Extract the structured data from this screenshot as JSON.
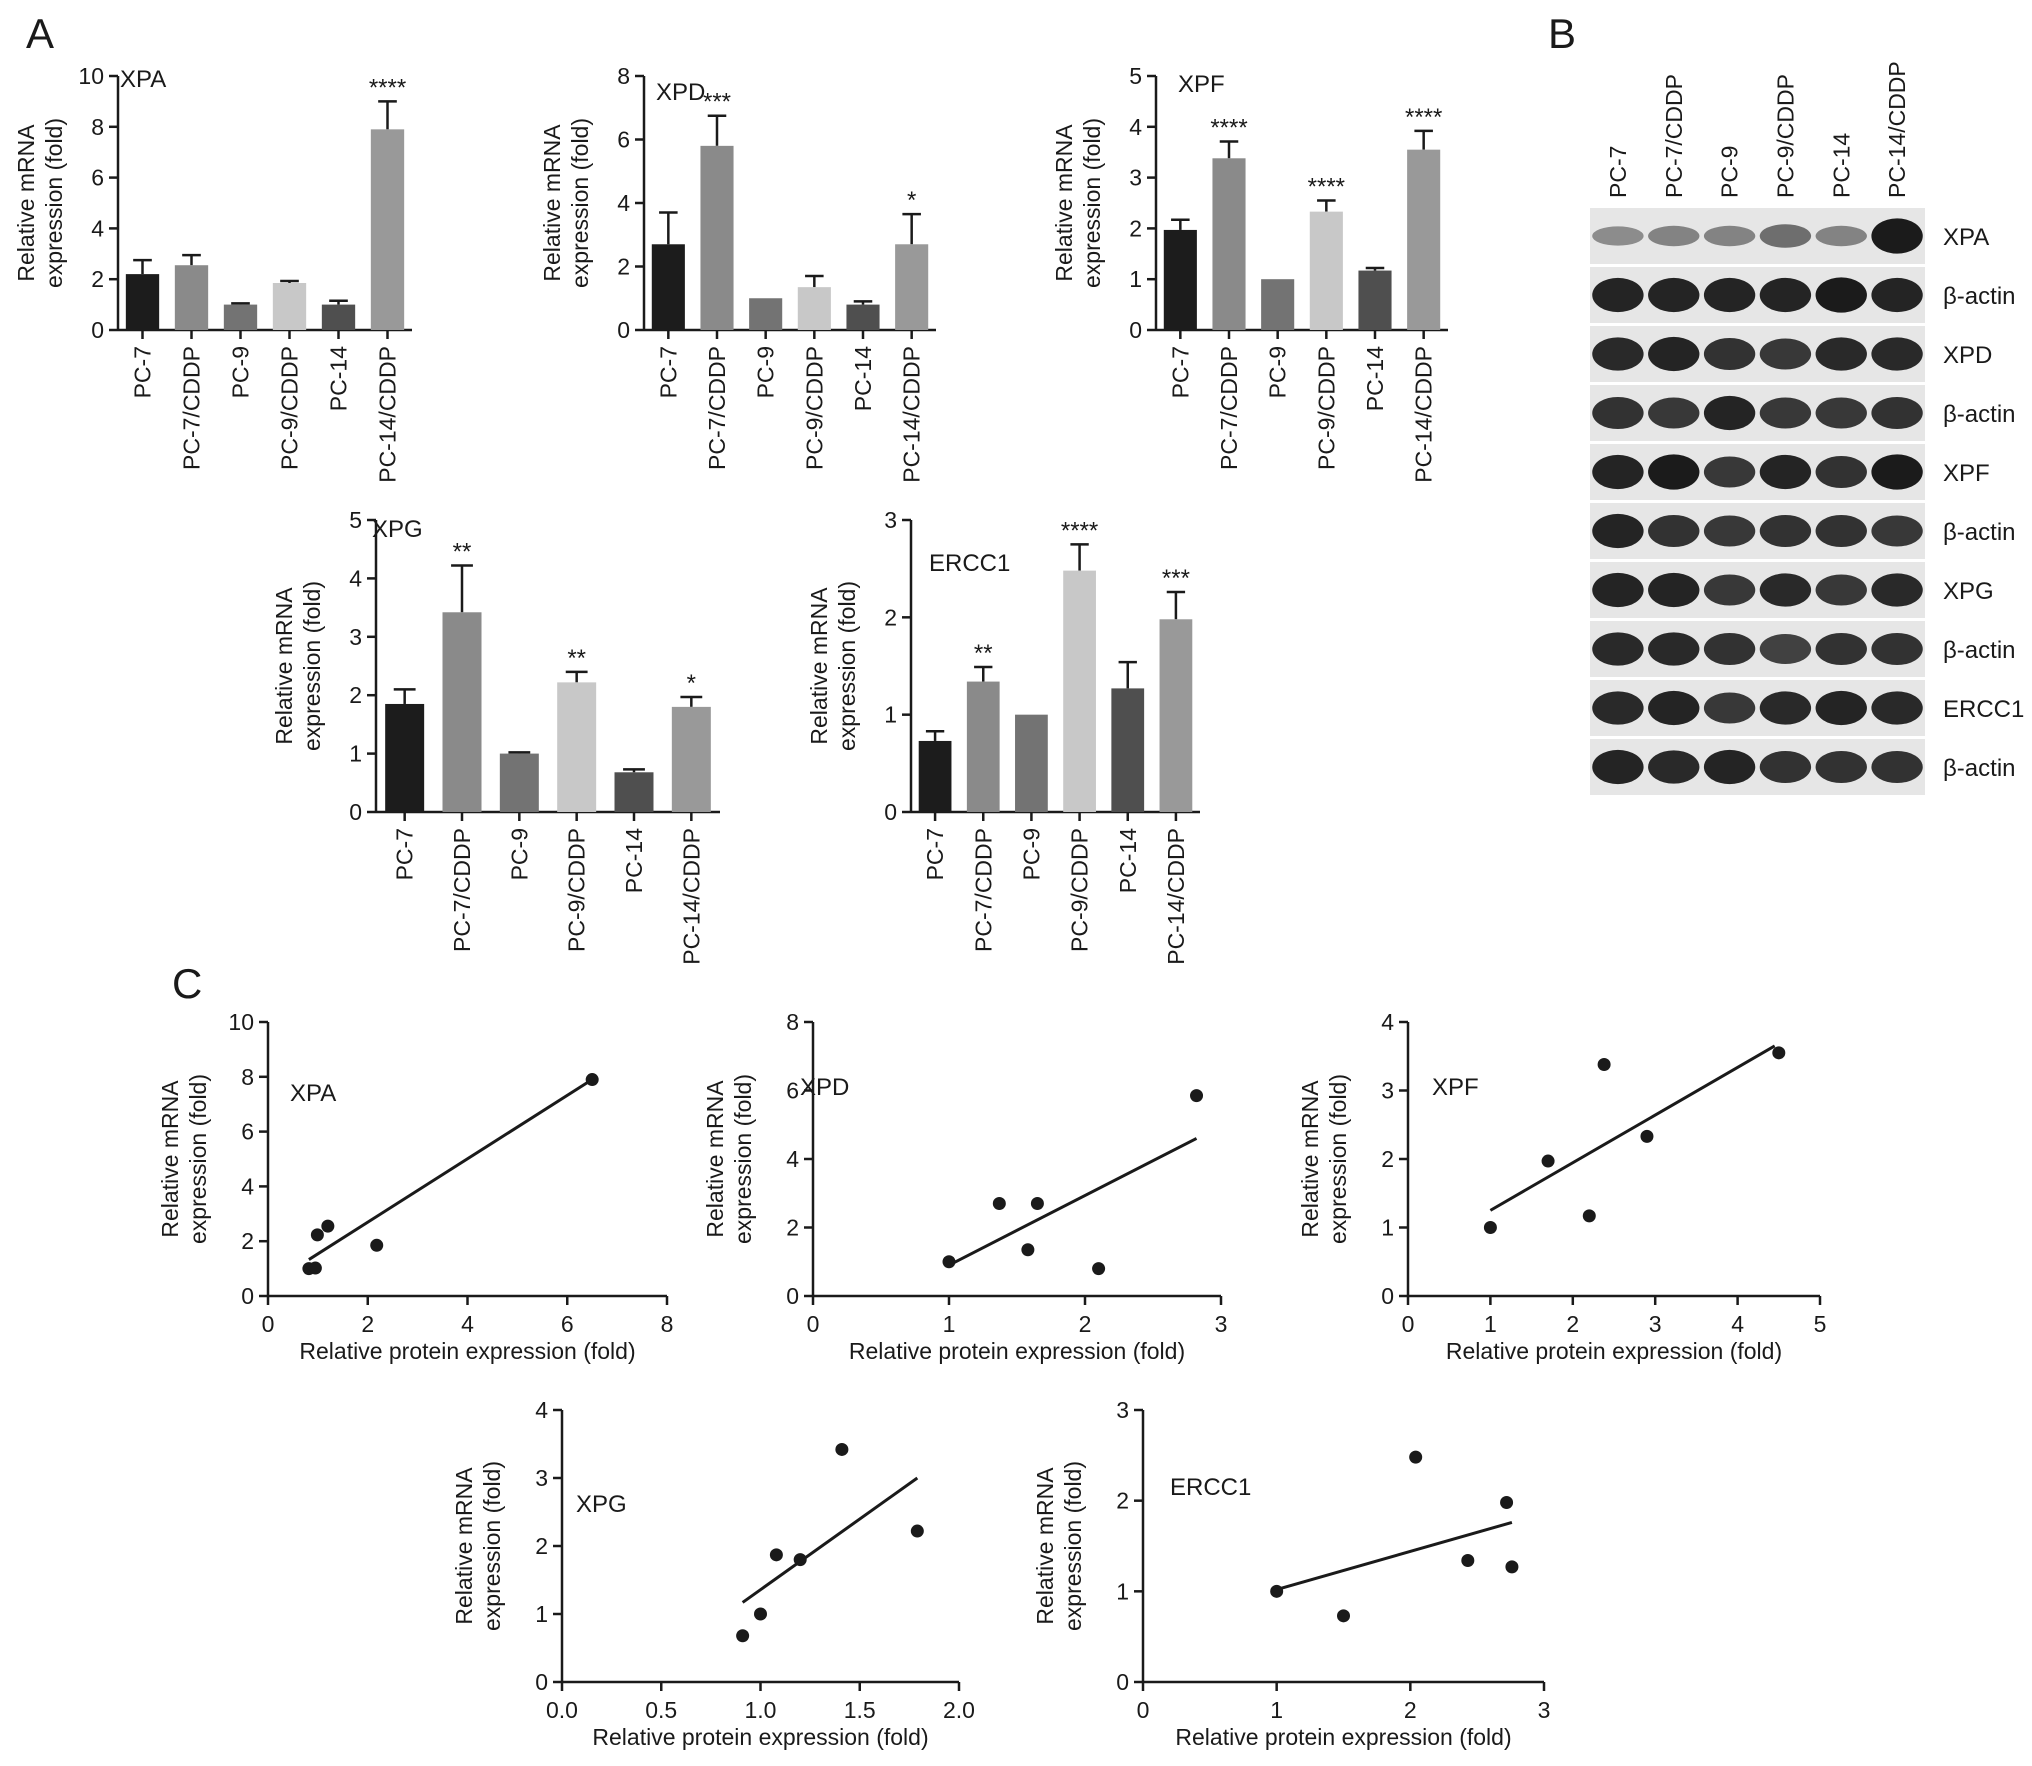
{
  "panel_labels": [
    "A",
    "B",
    "C"
  ],
  "colors": {
    "axis": "#1a1a1a",
    "bar_palette": [
      "#1c1c1c",
      "#8a8a8a",
      "#737373",
      "#c8c8c8",
      "#4f4f4f",
      "#999999"
    ],
    "blot_background": "#e6e6e6",
    "blot_band": "#141414"
  },
  "blot": {
    "lanes": [
      "PC-7",
      "PC-7/CDDP",
      "PC-9",
      "PC-9/CDDP",
      "PC-14",
      "PC-14/CDDP"
    ],
    "rows": [
      {
        "label": "XPA",
        "intensities": [
          0.25,
          0.3,
          0.3,
          0.45,
          0.3,
          1.0
        ]
      },
      {
        "label": "β-actin",
        "intensities": [
          0.95,
          0.95,
          0.95,
          0.95,
          1.0,
          0.95
        ]
      },
      {
        "label": "XPD",
        "intensities": [
          0.9,
          0.95,
          0.85,
          0.8,
          0.9,
          0.9
        ]
      },
      {
        "label": "β-actin",
        "intensities": [
          0.85,
          0.8,
          0.95,
          0.8,
          0.8,
          0.85
        ]
      },
      {
        "label": "XPF",
        "intensities": [
          0.95,
          1.0,
          0.8,
          0.95,
          0.85,
          1.0
        ]
      },
      {
        "label": "β-actin",
        "intensities": [
          0.95,
          0.85,
          0.8,
          0.85,
          0.85,
          0.8
        ]
      },
      {
        "label": "XPG",
        "intensities": [
          0.95,
          0.95,
          0.8,
          0.9,
          0.8,
          0.9
        ]
      },
      {
        "label": "β-actin",
        "intensities": [
          0.9,
          0.9,
          0.85,
          0.75,
          0.85,
          0.85
        ]
      },
      {
        "label": "ERCC1",
        "intensities": [
          0.9,
          0.95,
          0.8,
          0.9,
          0.95,
          0.9
        ]
      },
      {
        "label": "β-actin",
        "intensities": [
          0.95,
          0.9,
          0.95,
          0.85,
          0.85,
          0.85
        ]
      }
    ]
  },
  "chart_data": [
    {
      "type": "bar",
      "panel": "A",
      "title": "XPA",
      "categories": [
        "PC-7",
        "PC-7/CDDP",
        "PC-9",
        "PC-9/CDDP",
        "PC-14",
        "PC-14/CDDP"
      ],
      "values": [
        2.2,
        2.55,
        1.0,
        1.85,
        1.0,
        7.9
      ],
      "errors": [
        0.55,
        0.4,
        0.05,
        0.08,
        0.15,
        1.1
      ],
      "significance": [
        "",
        "",
        "",
        "",
        "",
        "****"
      ],
      "ylabel": "Relative mRNA expression (fold)",
      "ylim": [
        0,
        10
      ],
      "yticks": [
        0,
        2,
        4,
        6,
        8,
        10
      ],
      "ytick_labels": [
        "0",
        "2",
        "4",
        "6",
        "8",
        "10"
      ]
    },
    {
      "type": "bar",
      "panel": "A",
      "title": "XPD",
      "categories": [
        "PC-7",
        "PC-7/CDDP",
        "PC-9",
        "PC-9/CDDP",
        "PC-14",
        "PC-14/CDDP"
      ],
      "values": [
        2.7,
        5.8,
        1.0,
        1.35,
        0.8,
        2.7
      ],
      "errors": [
        1.0,
        0.95,
        0.0,
        0.35,
        0.1,
        0.95
      ],
      "significance": [
        "",
        "***",
        "",
        "",
        "",
        "*"
      ],
      "ylabel": "Relative mRNA expression (fold)",
      "ylim": [
        0,
        8
      ],
      "yticks": [
        0,
        2,
        4,
        6,
        8
      ],
      "ytick_labels": [
        "0",
        "2",
        "4",
        "6",
        "8"
      ]
    },
    {
      "type": "bar",
      "panel": "A",
      "title": "XPF",
      "categories": [
        "PC-7",
        "PC-7/CDDP",
        "PC-9",
        "PC-9/CDDP",
        "PC-14",
        "PC-14/CDDP"
      ],
      "values": [
        1.97,
        3.38,
        1.0,
        2.33,
        1.17,
        3.55
      ],
      "errors": [
        0.2,
        0.33,
        0.0,
        0.22,
        0.05,
        0.37
      ],
      "significance": [
        "",
        "****",
        "",
        "****",
        "",
        "****"
      ],
      "ylabel": "Relative mRNA expression (fold)",
      "ylim": [
        0,
        5
      ],
      "yticks": [
        0,
        1,
        2,
        3,
        4,
        5
      ],
      "ytick_labels": [
        "0",
        "1",
        "2",
        "3",
        "4",
        "5"
      ]
    },
    {
      "type": "bar",
      "panel": "A",
      "title": "XPG",
      "categories": [
        "PC-7",
        "PC-7/CDDP",
        "PC-9",
        "PC-9/CDDP",
        "PC-14",
        "PC-14/CDDP"
      ],
      "values": [
        1.85,
        3.42,
        1.0,
        2.22,
        0.68,
        1.8
      ],
      "errors": [
        0.25,
        0.8,
        0.02,
        0.18,
        0.05,
        0.17
      ],
      "significance": [
        "",
        "**",
        "",
        "**",
        "",
        "*"
      ],
      "ylabel": "Relative mRNA expression (fold)",
      "ylim": [
        0,
        5
      ],
      "yticks": [
        0,
        1,
        2,
        3,
        4,
        5
      ],
      "ytick_labels": [
        "0",
        "1",
        "2",
        "3",
        "4",
        "5"
      ]
    },
    {
      "type": "bar",
      "panel": "A",
      "title": "ERCC1",
      "categories": [
        "PC-7",
        "PC-7/CDDP",
        "PC-9",
        "PC-9/CDDP",
        "PC-14",
        "PC-14/CDDP"
      ],
      "values": [
        0.73,
        1.34,
        1.0,
        2.48,
        1.27,
        1.98
      ],
      "errors": [
        0.1,
        0.15,
        0.0,
        0.27,
        0.27,
        0.28
      ],
      "significance": [
        "",
        "**",
        "",
        "****",
        "",
        "***"
      ],
      "ylabel": "Relative mRNA expression (fold)",
      "ylim": [
        0,
        3
      ],
      "yticks": [
        0,
        1,
        2,
        3
      ],
      "ytick_labels": [
        "0",
        "1",
        "2",
        "3"
      ]
    },
    {
      "type": "scatter",
      "panel": "C",
      "title": "XPA",
      "x": [
        0.82,
        0.95,
        0.99,
        1.2,
        2.18,
        6.5
      ],
      "y": [
        1.0,
        1.02,
        2.23,
        2.55,
        1.85,
        7.9
      ],
      "fit_line": {
        "x": [
          0.82,
          6.5
        ],
        "y": [
          1.33,
          7.9
        ]
      },
      "xlabel": "Relative protein expression (fold)",
      "ylabel": "Relative mRNA expression (fold)",
      "xlim": [
        0,
        8
      ],
      "ylim": [
        0,
        10
      ],
      "xticks": [
        0,
        2,
        4,
        6,
        8
      ],
      "xtick_labels": [
        "0",
        "2",
        "4",
        "6",
        "8"
      ],
      "yticks": [
        0,
        2,
        4,
        6,
        8,
        10
      ],
      "ytick_labels": [
        "0",
        "2",
        "4",
        "6",
        "8",
        "10"
      ]
    },
    {
      "type": "scatter",
      "panel": "C",
      "title": "XPD",
      "x": [
        1.0,
        1.37,
        1.58,
        1.65,
        2.1,
        2.82
      ],
      "y": [
        1.0,
        2.7,
        1.35,
        2.7,
        0.8,
        5.85
      ],
      "fit_line": {
        "x": [
          1.0,
          2.82
        ],
        "y": [
          0.9,
          4.6
        ]
      },
      "xlabel": "Relative protein expression (fold)",
      "ylabel": "Relative mRNA expression (fold)",
      "xlim": [
        0,
        3
      ],
      "ylim": [
        0,
        8
      ],
      "xticks": [
        0,
        1,
        2,
        3
      ],
      "xtick_labels": [
        "0",
        "1",
        "2",
        "3"
      ],
      "yticks": [
        0,
        2,
        4,
        6,
        8
      ],
      "ytick_labels": [
        "0",
        "2",
        "4",
        "6",
        "8"
      ]
    },
    {
      "type": "scatter",
      "panel": "C",
      "title": "XPF",
      "x": [
        1.0,
        1.7,
        2.2,
        2.38,
        2.9,
        4.5
      ],
      "y": [
        1.0,
        1.97,
        1.17,
        3.38,
        2.33,
        3.55
      ],
      "fit_line": {
        "x": [
          1.0,
          4.45
        ],
        "y": [
          1.25,
          3.65
        ]
      },
      "xlabel": "Relative protein expression (fold)",
      "ylabel": "Relative mRNA expression (fold)",
      "xlim": [
        0,
        5
      ],
      "ylim": [
        0,
        4
      ],
      "xticks": [
        0,
        1,
        2,
        3,
        4,
        5
      ],
      "xtick_labels": [
        "0",
        "1",
        "2",
        "3",
        "4",
        "5"
      ],
      "yticks": [
        0,
        1,
        2,
        3,
        4
      ],
      "ytick_labels": [
        "0",
        "1",
        "2",
        "3",
        "4"
      ]
    },
    {
      "type": "scatter",
      "panel": "C",
      "title": "XPG",
      "x": [
        0.91,
        1.0,
        1.08,
        1.2,
        1.41,
        1.79
      ],
      "y": [
        0.68,
        1.0,
        1.87,
        1.8,
        3.42,
        2.22
      ],
      "fit_line": {
        "x": [
          0.91,
          1.79
        ],
        "y": [
          1.17,
          3.0
        ]
      },
      "xlabel": "Relative protein expression (fold)",
      "ylabel": "Relative mRNA expression (fold)",
      "xlim": [
        0.0,
        2.0
      ],
      "ylim": [
        0,
        4
      ],
      "xticks": [
        0.0,
        0.5,
        1.0,
        1.5,
        2.0
      ],
      "xtick_labels": [
        "0.0",
        "0.5",
        "1.0",
        "1.5",
        "2.0"
      ],
      "yticks": [
        0,
        1,
        2,
        3,
        4
      ],
      "ytick_labels": [
        "0",
        "1",
        "2",
        "3",
        "4"
      ]
    },
    {
      "type": "scatter",
      "panel": "C",
      "title": "ERCC1",
      "x": [
        1.0,
        1.5,
        2.04,
        2.43,
        2.72,
        2.76
      ],
      "y": [
        1.0,
        0.73,
        2.48,
        1.34,
        1.98,
        1.27
      ],
      "fit_line": {
        "x": [
          1.0,
          2.76
        ],
        "y": [
          1.02,
          1.76
        ]
      },
      "xlabel": "Relative protein expression (fold)",
      "ylabel": "Relative mRNA expression (fold)",
      "xlim": [
        0,
        3
      ],
      "ylim": [
        0,
        3
      ],
      "xticks": [
        0,
        1,
        2,
        3
      ],
      "xtick_labels": [
        "0",
        "1",
        "2",
        "3"
      ],
      "yticks": [
        0,
        1,
        2,
        3
      ],
      "ytick_labels": [
        "0",
        "1",
        "2",
        "3"
      ]
    }
  ]
}
